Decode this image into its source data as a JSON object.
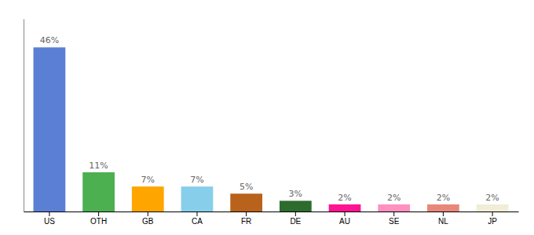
{
  "chart_data": {
    "type": "bar",
    "categories": [
      "US",
      "OTH",
      "GB",
      "CA",
      "FR",
      "DE",
      "AU",
      "SE",
      "NL",
      "JP"
    ],
    "values": [
      46,
      11,
      7,
      7,
      5,
      3,
      2,
      2,
      2,
      2
    ],
    "value_labels": [
      "46%",
      "11%",
      "7%",
      "7%",
      "5%",
      "3%",
      "2%",
      "2%",
      "2%",
      "2%"
    ],
    "colors": [
      "#5B7FD4",
      "#4CAF50",
      "#FFA500",
      "#87CEEB",
      "#B8621B",
      "#2E6B2E",
      "#FF1493",
      "#FF90C0",
      "#E8887A",
      "#F0EDD8"
    ],
    "ylim": [
      0,
      54
    ],
    "yticks": [],
    "grid": false,
    "data_labels": true,
    "tick_labels": "x"
  }
}
